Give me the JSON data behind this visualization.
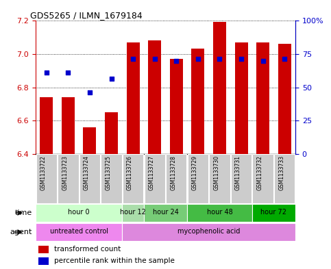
{
  "title": "GDS5265 / ILMN_1679184",
  "samples": [
    "GSM1133722",
    "GSM1133723",
    "GSM1133724",
    "GSM1133725",
    "GSM1133726",
    "GSM1133727",
    "GSM1133728",
    "GSM1133729",
    "GSM1133730",
    "GSM1133731",
    "GSM1133732",
    "GSM1133733"
  ],
  "bar_values": [
    6.74,
    6.74,
    6.56,
    6.65,
    7.07,
    7.08,
    6.97,
    7.03,
    7.19,
    7.07,
    7.07,
    7.06
  ],
  "bar_base": 6.4,
  "blue_values": [
    6.89,
    6.89,
    6.77,
    6.85,
    6.97,
    6.97,
    6.96,
    6.97,
    6.97,
    6.97,
    6.96,
    6.97
  ],
  "bar_color": "#cc0000",
  "blue_color": "#0000cc",
  "ylim": [
    6.4,
    7.2
  ],
  "y_ticks_left": [
    6.4,
    6.6,
    6.8,
    7.0,
    7.2
  ],
  "y_ticks_right": [
    0,
    25,
    50,
    75,
    100
  ],
  "right_tick_labels": [
    "0",
    "25",
    "50",
    "75",
    "100%"
  ],
  "ylabel_left_color": "#cc0000",
  "ylabel_right_color": "#0000cc",
  "time_groups": [
    {
      "label": "hour 0",
      "start": 0,
      "end": 3,
      "color": "#ccffcc"
    },
    {
      "label": "hour 12",
      "start": 4,
      "end": 4,
      "color": "#99ee99"
    },
    {
      "label": "hour 24",
      "start": 5,
      "end": 6,
      "color": "#66dd66"
    },
    {
      "label": "hour 48",
      "start": 7,
      "end": 9,
      "color": "#33cc33"
    },
    {
      "label": "hour 72",
      "start": 10,
      "end": 11,
      "color": "#00bb00"
    }
  ],
  "agent_groups": [
    {
      "label": "untreated control",
      "start": 0,
      "end": 3,
      "color": "#ee88ee"
    },
    {
      "label": "mycophenolic acid",
      "start": 4,
      "end": 11,
      "color": "#dd88dd"
    }
  ],
  "legend_bar_label": "transformed count",
  "legend_dot_label": "percentile rank within the sample",
  "sample_box_color": "#cccccc",
  "border_color": "#000000"
}
